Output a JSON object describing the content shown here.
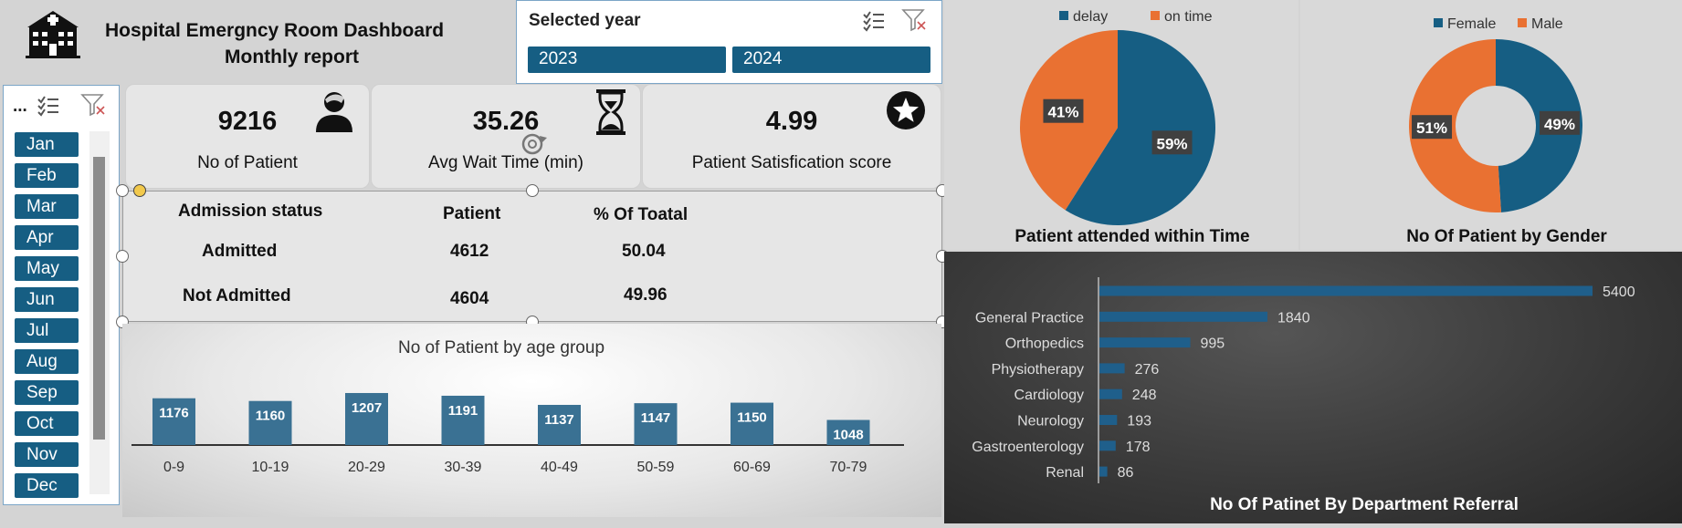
{
  "header": {
    "title_line1": "Hospital Emergncy Room Dashboard",
    "title_line2": "Monthly report",
    "icon": "hospital-icon"
  },
  "year_slicer": {
    "title": "Selected year",
    "options": [
      "2023",
      "2024"
    ]
  },
  "month_slicer": {
    "title": "...",
    "months": [
      "Jan",
      "Feb",
      "Mar",
      "Apr",
      "May",
      "Jun",
      "Jul",
      "Aug",
      "Sep",
      "Oct",
      "Nov",
      "Dec"
    ]
  },
  "kpis": {
    "patients": {
      "value": "9216",
      "label": "No of Patient",
      "icon": "person-icon"
    },
    "wait": {
      "value": "35.26",
      "label": "Avg Wait Time (min)",
      "icon": "hourglass-icon"
    },
    "satisfaction": {
      "value": "4.99",
      "label": "Patient Satisfication score",
      "icon": "star-icon"
    }
  },
  "admission": {
    "headers": [
      "Admission status",
      "Patient",
      "% Of Toatal"
    ],
    "rows": [
      {
        "status": "Admitted",
        "patient": "4612",
        "pct": "50.04"
      },
      {
        "status": "Not Admitted",
        "patient": "4604",
        "pct": "49.96"
      }
    ]
  },
  "colors": {
    "blue": "#165e83",
    "orange": "#e97132",
    "bar": "#3a7193",
    "dept_bar": "#1f5f8b"
  },
  "chart_data": [
    {
      "type": "bar",
      "title": "No of Patient by age group",
      "categories": [
        "0-9",
        "10-19",
        "20-29",
        "30-39",
        "40-49",
        "50-59",
        "60-69",
        "70-79"
      ],
      "values": [
        1176,
        1160,
        1207,
        1191,
        1137,
        1147,
        1150,
        1048
      ]
    },
    {
      "type": "pie",
      "title": "Patient attended within Time",
      "legend": [
        "delay",
        "on time"
      ],
      "labels": [
        "delay",
        "on time"
      ],
      "values": [
        59,
        41
      ],
      "data_labels": [
        "59%",
        "41%"
      ]
    },
    {
      "type": "pie",
      "variant": "donut",
      "title": "No Of Patient by Gender",
      "legend": [
        "Female",
        "Male"
      ],
      "labels": [
        "Female",
        "Male"
      ],
      "values": [
        49,
        51
      ],
      "data_labels": [
        "49%",
        "51%"
      ]
    },
    {
      "type": "bar",
      "orientation": "horizontal",
      "title": "No Of Patinet By Department Referral",
      "categories": [
        "",
        "General Practice",
        "Orthopedics",
        "Physiotherapy",
        "Cardiology",
        "Neurology",
        "Gastroenterology",
        "Renal"
      ],
      "values": [
        5400,
        1840,
        995,
        276,
        248,
        193,
        178,
        86
      ]
    }
  ]
}
